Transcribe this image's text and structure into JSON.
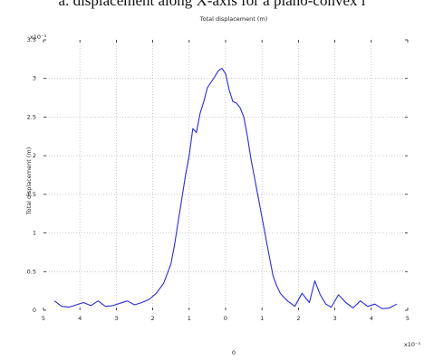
{
  "caption": "a. displacement along X-axis for a plano-convex l",
  "chart_data": {
    "type": "line",
    "title": "Total displacement (m)",
    "xlabel": "",
    "ylabel": "Total displacement (m)",
    "x_exponent_label": "x10⁻³",
    "y_exponent_label": "x10⁻³",
    "x_origin_label": "0",
    "xlim": [
      -5,
      5
    ],
    "ylim": [
      0,
      3.5
    ],
    "x_ticks": [
      -5,
      -4,
      -3,
      -2,
      -1,
      0,
      1,
      2,
      3,
      4,
      5
    ],
    "x_tick_labels": [
      "5",
      "4",
      "3",
      "2",
      "1",
      "0",
      "1",
      "2",
      "3",
      "4",
      "5"
    ],
    "y_ticks": [
      0,
      0.5,
      1,
      1.5,
      2,
      2.5,
      3,
      3.5
    ],
    "y_tick_labels": [
      "0",
      "0.5",
      "1",
      "1.5",
      "2",
      "2.5",
      "3",
      "3.5"
    ],
    "grid": true,
    "color": "#2b2bd9",
    "series": [
      {
        "x": [
          -4.7,
          -4.5,
          -4.3,
          -4.1,
          -3.9,
          -3.7,
          -3.5,
          -3.3,
          -3.1,
          -2.9,
          -2.7,
          -2.5,
          -2.3,
          -2.1,
          -1.9,
          -1.7,
          -1.5,
          -1.4,
          -1.3,
          -1.2,
          -1.1,
          -1.0,
          -0.9,
          -0.8,
          -0.7,
          -0.6,
          -0.5,
          -0.4,
          -0.3,
          -0.2,
          -0.1,
          0.0,
          0.1,
          0.2,
          0.3,
          0.4,
          0.5,
          0.6,
          0.7,
          0.8,
          0.9,
          1.0,
          1.1,
          1.2,
          1.3,
          1.4,
          1.5,
          1.7,
          1.9,
          2.1,
          2.3,
          2.45,
          2.6,
          2.75,
          2.9,
          3.1,
          3.3,
          3.5,
          3.7,
          3.9,
          4.1,
          4.3,
          4.5,
          4.7
        ],
        "y": [
          0.12,
          0.05,
          0.04,
          0.07,
          0.1,
          0.06,
          0.12,
          0.05,
          0.06,
          0.09,
          0.12,
          0.07,
          0.1,
          0.14,
          0.22,
          0.35,
          0.6,
          0.85,
          1.15,
          1.45,
          1.75,
          2.0,
          2.35,
          2.3,
          2.55,
          2.7,
          2.88,
          2.95,
          3.02,
          3.1,
          3.13,
          3.06,
          2.85,
          2.7,
          2.68,
          2.62,
          2.5,
          2.25,
          1.95,
          1.7,
          1.45,
          1.2,
          0.95,
          0.7,
          0.45,
          0.32,
          0.22,
          0.12,
          0.05,
          0.22,
          0.1,
          0.38,
          0.2,
          0.08,
          0.04,
          0.2,
          0.1,
          0.03,
          0.12,
          0.05,
          0.08,
          0.02,
          0.03,
          0.08
        ]
      }
    ]
  }
}
